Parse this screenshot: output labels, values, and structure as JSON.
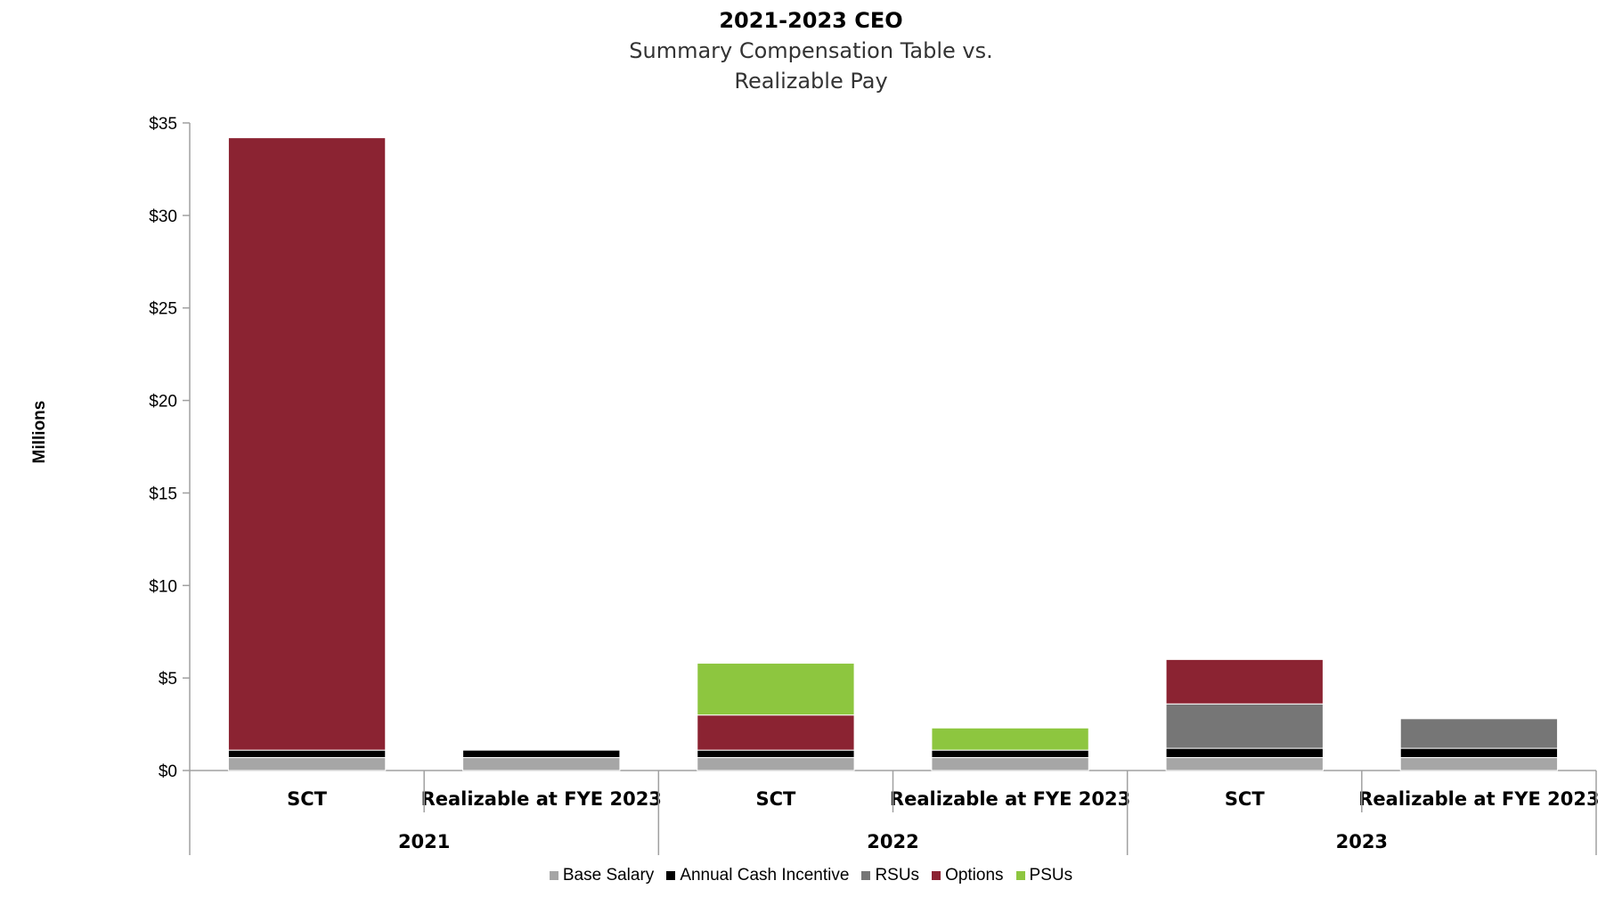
{
  "chart_data": {
    "type": "bar",
    "stacked": true,
    "title": "2021-2023 CEO",
    "subtitle_lines": [
      "Summary Compensation Table vs.",
      "Realizable Pay"
    ],
    "ylabel": "Millions",
    "xlabel": "",
    "ylim": [
      0,
      35
    ],
    "yticks": [
      0,
      5,
      10,
      15,
      20,
      25,
      30,
      35
    ],
    "ytick_labels": [
      "$0",
      "$5",
      "$10",
      "$15",
      "$20",
      "$25",
      "$30",
      "$35"
    ],
    "groups": [
      "2021",
      "2022",
      "2023"
    ],
    "categories": [
      "SCT",
      "Realizable at FYE 2023",
      "SCT",
      "Realizable at FYE 2023",
      "SCT",
      "Realizable at FYE 2023"
    ],
    "series": [
      {
        "name": "Base Salary",
        "color": "#a6a6a6",
        "values": [
          0.7,
          0.7,
          0.7,
          0.7,
          0.7,
          0.7
        ]
      },
      {
        "name": "Annual Cash Incentive",
        "color": "#000000",
        "values": [
          0.4,
          0.4,
          0.4,
          0.4,
          0.5,
          0.5
        ]
      },
      {
        "name": "RSUs",
        "color": "#767676",
        "values": [
          0,
          0,
          0,
          0,
          2.4,
          1.6
        ]
      },
      {
        "name": "Options",
        "color": "#8b2332",
        "values": [
          33.1,
          0,
          1.9,
          0,
          2.4,
          0
        ]
      },
      {
        "name": "PSUs",
        "color": "#8dc63f",
        "values": [
          0,
          0,
          2.8,
          1.2,
          0,
          0
        ]
      }
    ]
  }
}
